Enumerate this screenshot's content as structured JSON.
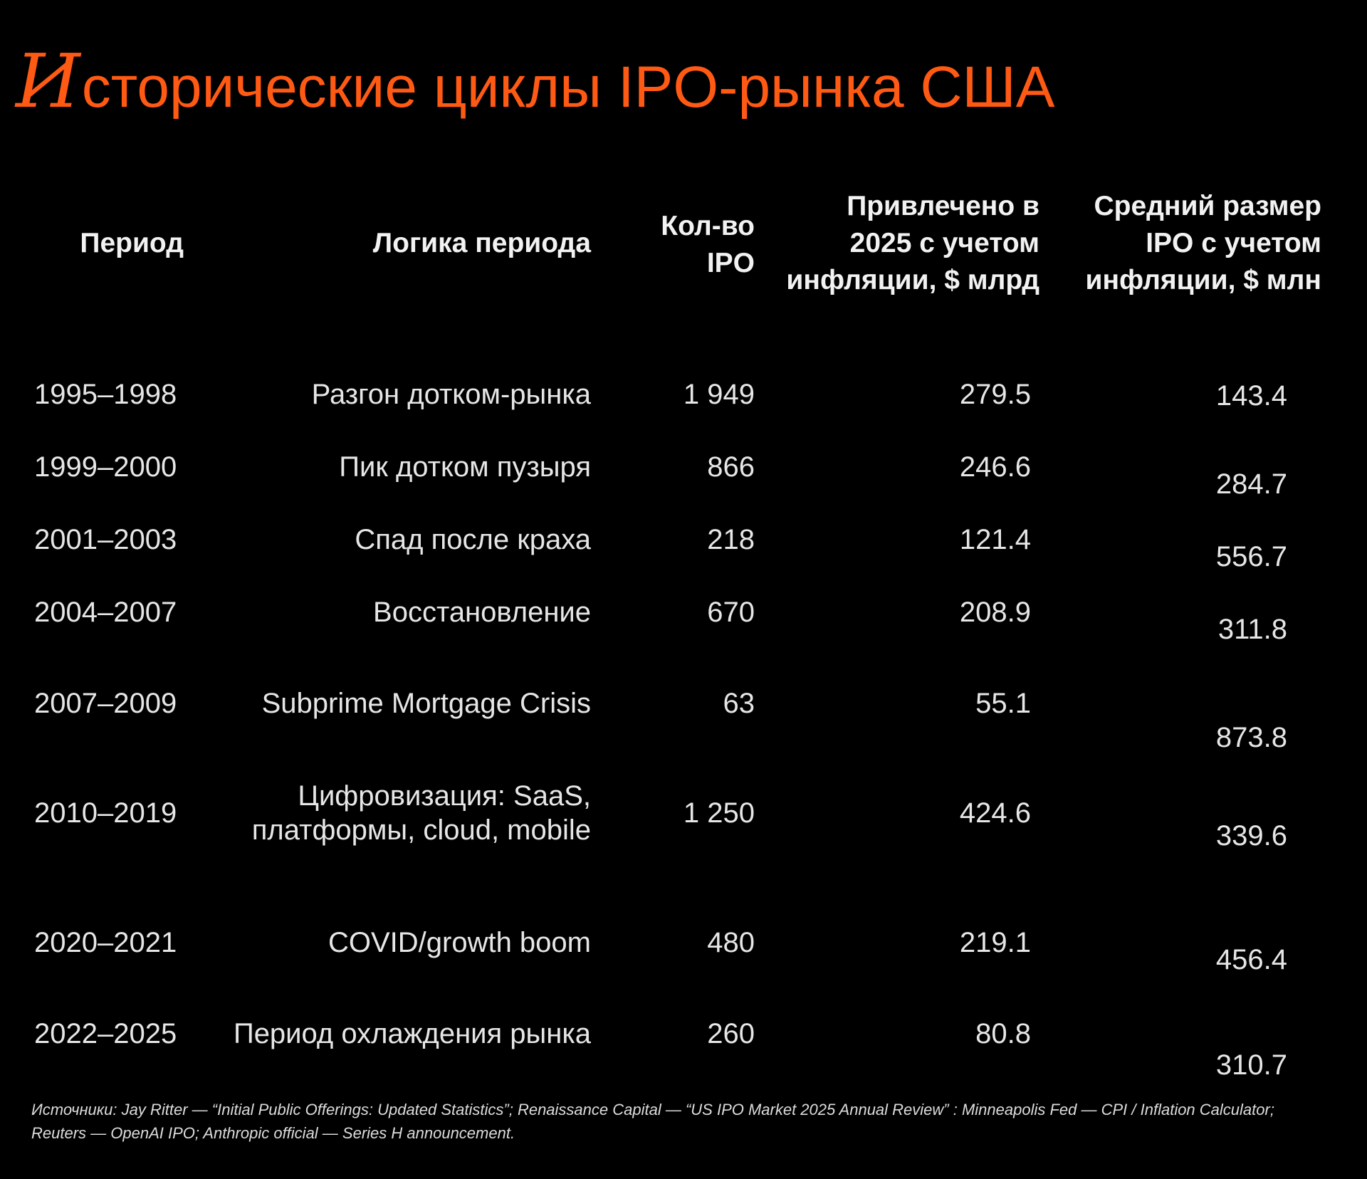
{
  "title": {
    "initial": "И",
    "rest": "сторические циклы IPO-рынка США"
  },
  "headers": {
    "period": "Период",
    "logic": "Логика периода",
    "count": "Кол-во\nIPO",
    "raised": "Привлечено в\n2025 с учетом\nинфляции, $ млрд",
    "avg": "Средний размер\nIPO с учетом\nинфляции, $ млн"
  },
  "rows": [
    {
      "period": "1995–1998",
      "logic": "Разгон дотком-рынка",
      "count": "1 949",
      "raised": "279.5",
      "avg": "143.4"
    },
    {
      "period": "1999–2000",
      "logic": "Пик дотком пузыря",
      "count": "866",
      "raised": "246.6",
      "avg": "284.7"
    },
    {
      "period": "2001–2003",
      "logic": "Спад после краха",
      "count": "218",
      "raised": "121.4",
      "avg": "556.7"
    },
    {
      "period": "2004–2007",
      "logic": "Восстановление",
      "count": "670",
      "raised": "208.9",
      "avg": "311.8"
    },
    {
      "period": "2007–2009",
      "logic": "Subprime Mortgage Crisis",
      "count": "63",
      "raised": "55.1",
      "avg": "873.8"
    },
    {
      "period": "2010–2019",
      "logic": "Цифровизация: SaaS,\nплатформы, cloud, mobile",
      "count": "1 250",
      "raised": "424.6",
      "avg": "339.6"
    },
    {
      "period": "2020–2021",
      "logic": "COVID/growth boom",
      "count": "480",
      "raised": "219.1",
      "avg": "456.4"
    },
    {
      "period": "2022–2025",
      "logic": "Период охлаждения рынка",
      "count": "260",
      "raised": "80.8",
      "avg": "310.7"
    }
  ],
  "sources": "Источники: Jay Ritter — “Initial Public Offerings: Updated Statistics”; Renaissance Capital — “US IPO Market 2025 Annual Review” : Minneapolis Fed — CPI / Inflation Calculator; Reuters — OpenAI IPO; Anthropic official — Series H announcement.",
  "colors": {
    "background": "#000000",
    "title_accent": "#ff5a14",
    "text": "#e6e6e6"
  }
}
